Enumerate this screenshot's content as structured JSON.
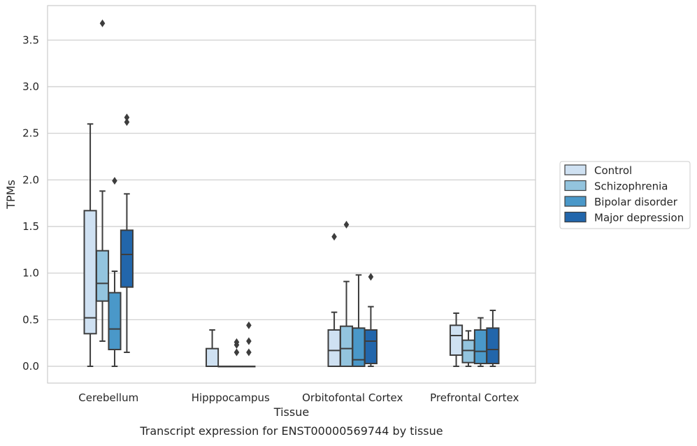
{
  "chart_data": {
    "type": "box",
    "title": "",
    "caption": "Transcript expression for ENST00000569744 by tissue",
    "xlabel": "Tissue",
    "ylabel": "TPMs",
    "ylim": [
      -0.18,
      3.87
    ],
    "yticks": [
      0.0,
      0.5,
      1.0,
      1.5,
      2.0,
      2.5,
      3.0,
      3.5
    ],
    "ytick_labels": [
      "0.0",
      "0.5",
      "1.0",
      "1.5",
      "2.0",
      "2.5",
      "3.0",
      "3.5"
    ],
    "grid": true,
    "legend_placement": "right",
    "categories": [
      "Cerebellum",
      "Hipppocampus",
      "Orbitofontal Cortex",
      "Prefrontal Cortex"
    ],
    "series": [
      {
        "name": "Control",
        "color": "#cfe1f2",
        "boxes": [
          {
            "q1": 0.35,
            "median": 0.52,
            "q3": 1.67,
            "whisker_low": 0.0,
            "whisker_high": 2.6,
            "outliers": []
          },
          {
            "q1": 0.0,
            "median": 0.0,
            "q3": 0.19,
            "whisker_low": 0.0,
            "whisker_high": 0.39,
            "outliers": []
          },
          {
            "q1": 0.0,
            "median": 0.17,
            "q3": 0.39,
            "whisker_low": 0.0,
            "whisker_high": 0.58,
            "outliers": [
              1.39
            ]
          },
          {
            "q1": 0.12,
            "median": 0.33,
            "q3": 0.44,
            "whisker_low": 0.0,
            "whisker_high": 0.57,
            "outliers": []
          }
        ]
      },
      {
        "name": "Schizophrenia",
        "color": "#93c4de",
        "boxes": [
          {
            "q1": 0.7,
            "median": 0.89,
            "q3": 1.24,
            "whisker_low": 0.27,
            "whisker_high": 1.88,
            "outliers": [
              3.68
            ]
          },
          {
            "q1": 0.0,
            "median": 0.0,
            "q3": 0.0,
            "whisker_low": 0.0,
            "whisker_high": 0.0,
            "outliers": []
          },
          {
            "q1": 0.0,
            "median": 0.19,
            "q3": 0.43,
            "whisker_low": 0.0,
            "whisker_high": 0.91,
            "outliers": [
              1.52
            ]
          },
          {
            "q1": 0.04,
            "median": 0.17,
            "q3": 0.28,
            "whisker_low": 0.0,
            "whisker_high": 0.38,
            "outliers": []
          }
        ]
      },
      {
        "name": "Bipolar disorder",
        "color": "#4a98c9",
        "boxes": [
          {
            "q1": 0.18,
            "median": 0.4,
            "q3": 0.79,
            "whisker_low": 0.0,
            "whisker_high": 1.02,
            "outliers": [
              1.99
            ]
          },
          {
            "q1": 0.0,
            "median": 0.0,
            "q3": 0.0,
            "whisker_low": 0.0,
            "whisker_high": 0.0,
            "outliers": [
              0.15,
              0.23,
              0.26
            ]
          },
          {
            "q1": 0.0,
            "median": 0.07,
            "q3": 0.41,
            "whisker_low": 0.0,
            "whisker_high": 0.98,
            "outliers": []
          },
          {
            "q1": 0.03,
            "median": 0.16,
            "q3": 0.39,
            "whisker_low": 0.0,
            "whisker_high": 0.52,
            "outliers": []
          }
        ]
      },
      {
        "name": "Major depression",
        "color": "#2266ab",
        "boxes": [
          {
            "q1": 0.85,
            "median": 1.2,
            "q3": 1.46,
            "whisker_low": 0.15,
            "whisker_high": 1.85,
            "outliers": [
              2.62,
              2.67
            ]
          },
          {
            "q1": 0.0,
            "median": 0.0,
            "q3": 0.0,
            "whisker_low": 0.0,
            "whisker_high": 0.0,
            "outliers": [
              0.15,
              0.27,
              0.44
            ]
          },
          {
            "q1": 0.03,
            "median": 0.27,
            "q3": 0.39,
            "whisker_low": 0.0,
            "whisker_high": 0.64,
            "outliers": [
              0.96
            ]
          },
          {
            "q1": 0.03,
            "median": 0.18,
            "q3": 0.41,
            "whisker_low": 0.0,
            "whisker_high": 0.6,
            "outliers": []
          }
        ]
      }
    ]
  },
  "colors": {
    "grid": "#cccccc",
    "frame": "#cccccc",
    "box_edge": "#3d3d3d",
    "text": "#262626",
    "background": "#ffffff"
  }
}
